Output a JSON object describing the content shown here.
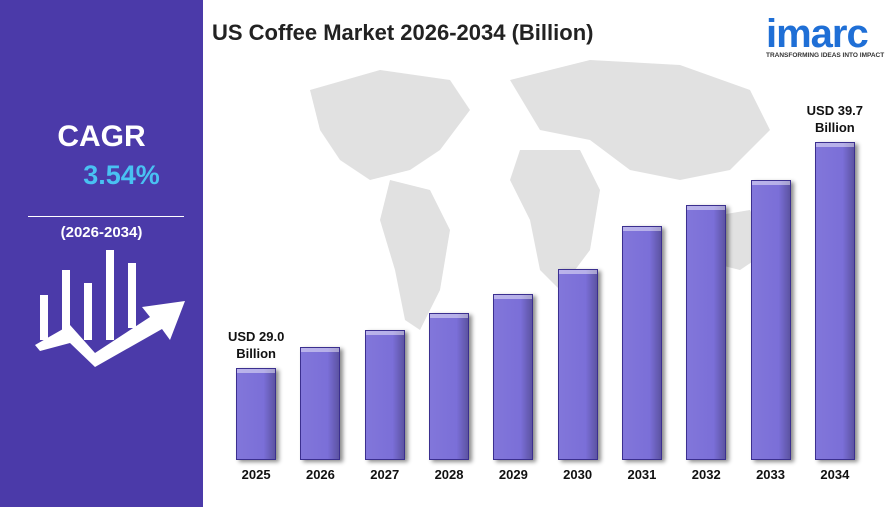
{
  "left_panel": {
    "cagr_label": "CAGR",
    "cagr_value": "3.54%",
    "period": "(2026-2034)"
  },
  "logo": {
    "name": "imarc",
    "tagline": "TRANSFORMING IDEAS INTO IMPACT"
  },
  "chart_data": {
    "type": "bar",
    "title": "US Coffee Market 2026-2034 (Billion)",
    "categories": [
      "2025",
      "2026",
      "2027",
      "2028",
      "2029",
      "2030",
      "2031",
      "2032",
      "2033",
      "2034"
    ],
    "values": [
      29.0,
      30.0,
      30.8,
      31.6,
      32.5,
      33.7,
      35.7,
      36.7,
      37.9,
      39.7
    ],
    "value_labels": [
      "USD 29.0 Billion",
      null,
      null,
      null,
      null,
      null,
      null,
      null,
      null,
      "USD 39.7 Billion"
    ],
    "color": "#7b6fd8"
  }
}
